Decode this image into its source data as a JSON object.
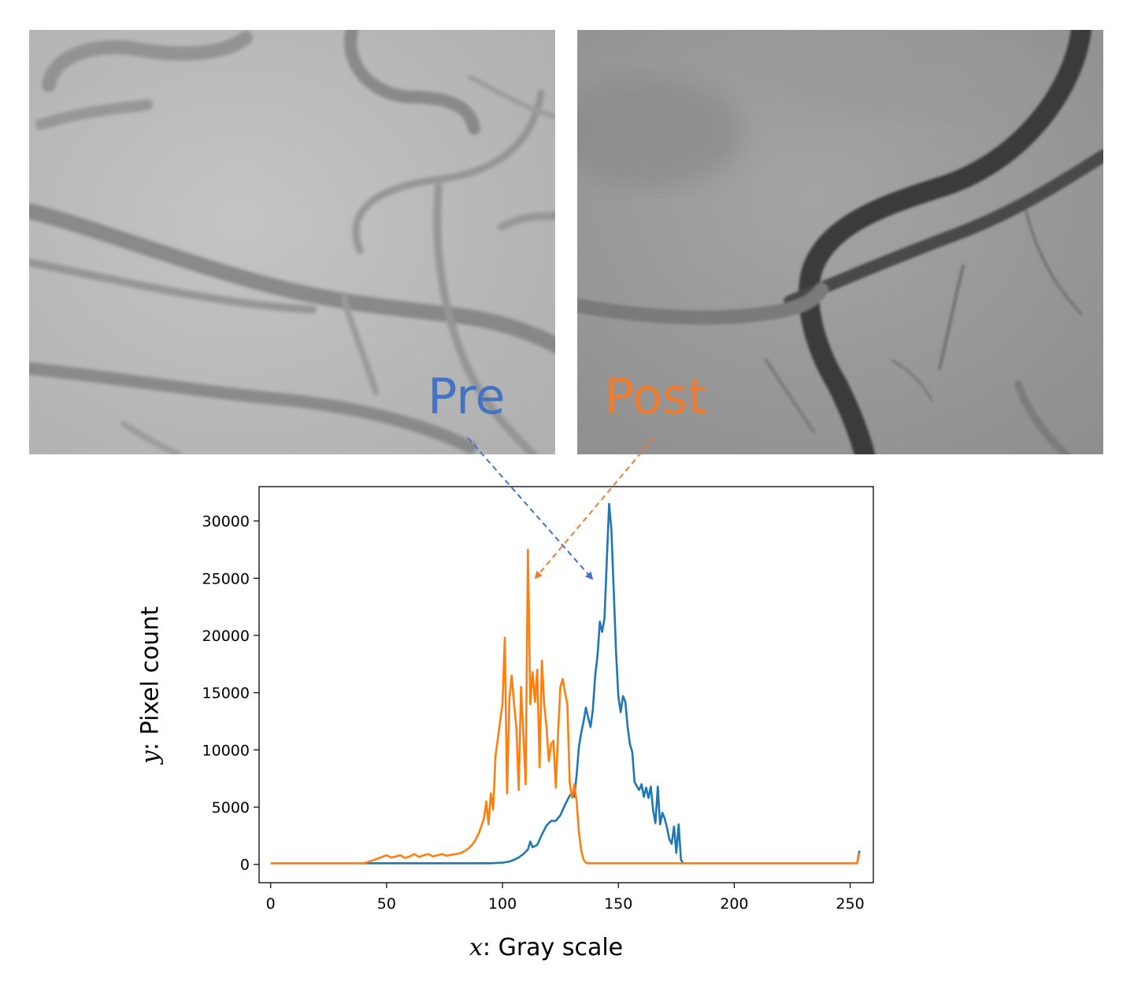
{
  "annotations": {
    "pre_label": "Pre",
    "post_label": "Post",
    "pre_color": "#4472c4",
    "post_color": "#ed7d31"
  },
  "chart_data": {
    "type": "line",
    "title": "",
    "xlabel_var": "x",
    "xlabel_text": ": Gray scale",
    "ylabel_var": "y",
    "ylabel_text": ": Pixel count",
    "xlim": [
      -5,
      260
    ],
    "ylim": [
      -1600,
      33000
    ],
    "xticks": [
      0,
      50,
      100,
      150,
      200,
      250
    ],
    "yticks": [
      0,
      5000,
      10000,
      15000,
      20000,
      25000,
      30000
    ],
    "grid": false,
    "legend": "none",
    "series": [
      {
        "color": "#1f77b4",
        "x": [
          0,
          40,
          60,
          80,
          95,
          100,
          103,
          105,
          107,
          109,
          111,
          112,
          113,
          115,
          117,
          119,
          121,
          123,
          125,
          127,
          129,
          130,
          131,
          132,
          133,
          134,
          135,
          136,
          137,
          138,
          139,
          140,
          141,
          142,
          143,
          144,
          145,
          146,
          147,
          148,
          149,
          150,
          151,
          152,
          153,
          154,
          155,
          156,
          157,
          158,
          159,
          160,
          161,
          162,
          163,
          164,
          165,
          166,
          167,
          168,
          169,
          170,
          171,
          172,
          173,
          174,
          175,
          176,
          177,
          178,
          190,
          220,
          253,
          254
        ],
        "y": [
          100,
          100,
          100,
          100,
          100,
          150,
          250,
          400,
          600,
          900,
          1300,
          2000,
          1500,
          1700,
          2600,
          3400,
          3800,
          3800,
          4300,
          5200,
          6000,
          6200,
          5900,
          7800,
          10300,
          11500,
          12500,
          13700,
          12800,
          12000,
          13500,
          16500,
          18200,
          21200,
          20300,
          21500,
          26500,
          31500,
          29200,
          24000,
          18500,
          14700,
          13300,
          14700,
          14200,
          12000,
          10500,
          9800,
          7200,
          6800,
          6500,
          7000,
          5900,
          6700,
          5800,
          6800,
          4700,
          3600,
          6800,
          3500,
          4500,
          4000,
          3200,
          2200,
          1800,
          3300,
          1000,
          3500,
          400,
          100,
          100,
          100,
          100,
          1200
        ]
      },
      {
        "color": "#ff7f0e",
        "x": [
          0,
          40,
          42,
          44,
          46,
          48,
          50,
          52,
          54,
          56,
          58,
          60,
          62,
          64,
          66,
          68,
          70,
          72,
          74,
          76,
          78,
          80,
          82,
          84,
          86,
          88,
          90,
          92,
          93,
          94,
          95,
          96,
          97,
          98,
          99,
          100,
          101,
          102,
          103,
          104,
          105,
          106,
          107,
          108,
          109,
          110,
          111,
          112,
          113,
          114,
          115,
          116,
          117,
          118,
          119,
          120,
          121,
          122,
          123,
          124,
          125,
          126,
          127,
          128,
          129,
          130,
          131,
          132,
          133,
          134,
          135,
          136,
          137,
          138,
          150,
          200,
          253,
          254
        ],
        "y": [
          100,
          100,
          200,
          350,
          500,
          650,
          800,
          600,
          700,
          800,
          550,
          700,
          900,
          650,
          800,
          900,
          700,
          800,
          900,
          750,
          850,
          900,
          1000,
          1200,
          1500,
          2000,
          2800,
          4000,
          5500,
          3500,
          6200,
          4800,
          9500,
          11000,
          12500,
          14000,
          19800,
          6200,
          14500,
          16500,
          14000,
          12000,
          6500,
          15500,
          11500,
          7000,
          27500,
          14000,
          16800,
          14200,
          17000,
          8500,
          17800,
          14000,
          12000,
          9000,
          10500,
          10800,
          6700,
          11500,
          15500,
          16200,
          15000,
          14000,
          7200,
          5800,
          7000,
          5500,
          2800,
          1200,
          400,
          150,
          100,
          100,
          100,
          100,
          100,
          1000
        ]
      }
    ]
  }
}
